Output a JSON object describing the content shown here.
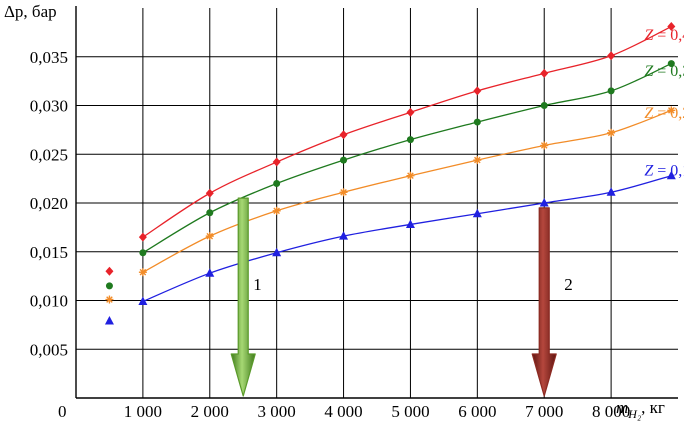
{
  "chart_data": {
    "type": "line",
    "y_axis_title": "Δp, бар",
    "x_axis_title": "m",
    "x_axis_subscript": "H₂",
    "x_axis_unit": ", кг",
    "origin_label": "0",
    "xlim": [
      0,
      9000
    ],
    "ylim": [
      0,
      0.04
    ],
    "grid": true,
    "x_ticks": [
      1000,
      2000,
      3000,
      4000,
      5000,
      6000,
      7000,
      8000
    ],
    "x_tick_labels": [
      "1 000",
      "2 000",
      "3 000",
      "4 000",
      "5 000",
      "6 000",
      "7 000",
      "8 000"
    ],
    "y_ticks": [
      0.005,
      0.01,
      0.015,
      0.02,
      0.025,
      0.03,
      0.035
    ],
    "y_tick_labels": [
      "0,005",
      "0,010",
      "0,015",
      "0,020",
      "0,025",
      "0,030",
      "0,035"
    ],
    "series": [
      {
        "name": "Z = 0,4",
        "color": "#e8232a",
        "marker": "diamond",
        "x": [
          500,
          1000,
          2000,
          3000,
          4000,
          5000,
          6000,
          7000,
          8000,
          8900
        ],
        "y": [
          0.013,
          0.0165,
          0.021,
          0.0242,
          0.027,
          0.0293,
          0.0315,
          0.0333,
          0.0351,
          0.0381
        ]
      },
      {
        "name": "Z = 0,3",
        "color": "#1f7a1f",
        "marker": "circle",
        "x": [
          500,
          1000,
          2000,
          3000,
          4000,
          5000,
          6000,
          7000,
          8000,
          8900
        ],
        "y": [
          0.0115,
          0.0149,
          0.019,
          0.022,
          0.0244,
          0.0265,
          0.0283,
          0.03,
          0.0315,
          0.0343
        ]
      },
      {
        "name": "Z = 0,2",
        "color": "#f28c28",
        "marker": "star",
        "x": [
          500,
          1000,
          2000,
          3000,
          4000,
          5000,
          6000,
          7000,
          8000,
          8900
        ],
        "y": [
          0.0101,
          0.0129,
          0.0166,
          0.0192,
          0.0211,
          0.0228,
          0.0244,
          0.0259,
          0.0272,
          0.0295
        ]
      },
      {
        "name": "Z = 0,1",
        "color": "#2020e0",
        "marker": "triangle",
        "x": [
          500,
          1000,
          2000,
          3000,
          4000,
          5000,
          6000,
          7000,
          8000,
          8900
        ],
        "y": [
          0.0079,
          0.0099,
          0.0128,
          0.0149,
          0.0166,
          0.0178,
          0.0189,
          0.02,
          0.0211,
          0.0228
        ]
      }
    ],
    "annotations": [
      {
        "label": "1",
        "x": 2500,
        "y_top": 0.0205,
        "color": "#5a9a2a"
      },
      {
        "label": "2",
        "x": 7000,
        "y_top": 0.0195,
        "color": "#8c2a22"
      }
    ]
  }
}
